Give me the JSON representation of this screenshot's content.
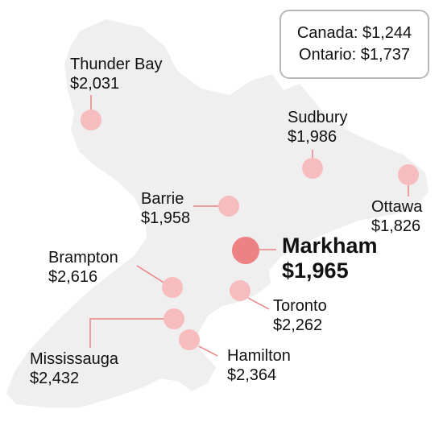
{
  "summary": {
    "canada_label": "Canada",
    "canada_value": "$1,244",
    "ontario_label": "Ontario",
    "ontario_value": "$1,737"
  },
  "colors": {
    "land": "#efefef",
    "marker": "#f7bcbd",
    "highlight": "#ec8284",
    "leader": "#ec8284",
    "text": "#111111",
    "border": "#b8b8b8"
  },
  "cities": [
    {
      "id": "thunder-bay",
      "name": "Thunder Bay",
      "value": "$2,031",
      "highlight": false
    },
    {
      "id": "sudbury",
      "name": "Sudbury",
      "value": "$1,986",
      "highlight": false
    },
    {
      "id": "barrie",
      "name": "Barrie",
      "value": "$1,958",
      "highlight": false
    },
    {
      "id": "ottawa",
      "name": "Ottawa",
      "value": "$1,826",
      "highlight": false
    },
    {
      "id": "markham",
      "name": "Markham",
      "value": "$1,965",
      "highlight": true
    },
    {
      "id": "brampton",
      "name": "Brampton",
      "value": "$2,616",
      "highlight": false
    },
    {
      "id": "toronto",
      "name": "Toronto",
      "value": "$2,262",
      "highlight": false
    },
    {
      "id": "mississauga",
      "name": "Mississauga",
      "value": "$2,432",
      "highlight": false
    },
    {
      "id": "hamilton",
      "name": "Hamilton",
      "value": "$2,364",
      "highlight": false
    }
  ]
}
